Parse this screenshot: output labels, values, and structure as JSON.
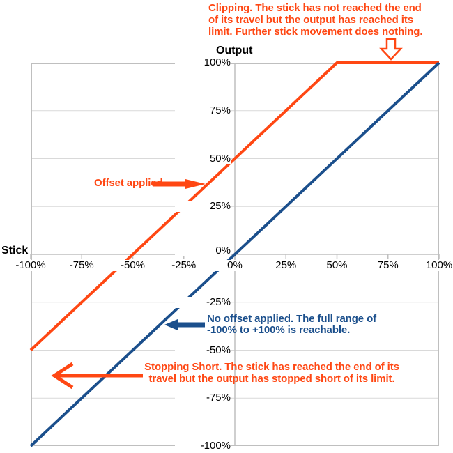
{
  "chart_data": {
    "type": "line",
    "title": "",
    "x_axis_label": "Stick",
    "y_axis_label": "Output",
    "xlim": [
      -100,
      100
    ],
    "ylim": [
      -100,
      100
    ],
    "grid": "25% steps, horizontal gridlines, center axes",
    "legend": "none (labeled by annotations)",
    "x_ticks": [
      {
        "value": -100,
        "label": "-100%"
      },
      {
        "value": -75,
        "label": "-75%"
      },
      {
        "value": -50,
        "label": "-50%"
      },
      {
        "value": -25,
        "label": "-25%"
      },
      {
        "value": 0,
        "label": "0%"
      },
      {
        "value": 25,
        "label": "25%"
      },
      {
        "value": 50,
        "label": "50%"
      },
      {
        "value": 75,
        "label": "75%"
      },
      {
        "value": 100,
        "label": "100%"
      }
    ],
    "y_ticks": [
      {
        "value": 100,
        "label": "100%"
      },
      {
        "value": 75,
        "label": "75%"
      },
      {
        "value": 50,
        "label": "50%"
      },
      {
        "value": 25,
        "label": "25%"
      },
      {
        "value": 0,
        "label": "0%"
      },
      {
        "value": -25,
        "label": "-25%"
      },
      {
        "value": -50,
        "label": "-50%"
      },
      {
        "value": -75,
        "label": "-75%"
      },
      {
        "value": -100,
        "label": "-100%"
      }
    ],
    "series": [
      {
        "name": "Offset applied (clipped at +100%)",
        "color": "#FF4713",
        "points": [
          [
            -100,
            -50
          ],
          [
            50,
            100
          ],
          [
            100,
            100
          ]
        ]
      },
      {
        "name": "No offset applied",
        "color": "#1B4F8C",
        "points": [
          [
            -100,
            -100
          ],
          [
            100,
            100
          ]
        ]
      }
    ]
  },
  "annotations": {
    "clipping": {
      "lines": [
        "Clipping. The stick has not reached the end",
        "of its travel but the output has reached its",
        "limit. Further stick movement does nothing."
      ]
    },
    "offset_applied": {
      "label": "Offset applied"
    },
    "no_offset": {
      "lines": [
        "No offset applied. The full range of",
        "-100% to +100% is reachable."
      ]
    },
    "stopping_short": {
      "lines": [
        "Stopping Short. The stick has reached the end of its",
        "travel but the output has stopped short of its limit."
      ]
    }
  },
  "colors": {
    "orange": "#FF4713",
    "blue": "#1B4F8C",
    "grid": "#D9D9D9",
    "axis": "#BFBFBF",
    "text": "#000000"
  }
}
